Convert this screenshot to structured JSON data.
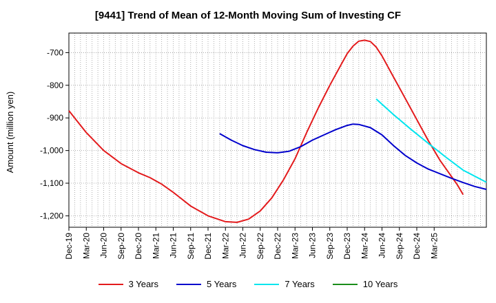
{
  "chart_data": {
    "type": "line",
    "title": "[9441]  Trend of Mean of 12-Month Moving Sum of Investing CF",
    "xlabel": "",
    "ylabel": "Amount (million yen)",
    "ylim": [
      -1235,
      -640
    ],
    "y_ticks": [
      -700,
      -800,
      -900,
      -1000,
      -1100,
      -1200
    ],
    "y_tick_labels": [
      "-700",
      "-800",
      "-900",
      "-1,000",
      "-1,100",
      "-1,200"
    ],
    "x_range_months": [
      0,
      72
    ],
    "x_ticks": [
      "Dec-19",
      "Mar-20",
      "Jun-20",
      "Sep-20",
      "Dec-20",
      "Mar-21",
      "Jun-21",
      "Sep-21",
      "Dec-21",
      "Mar-22",
      "Jun-22",
      "Sep-22",
      "Dec-22",
      "Mar-23",
      "Jun-23",
      "Sep-23",
      "Dec-23",
      "Mar-24",
      "Jun-24",
      "Sep-24",
      "Dec-24",
      "Mar-25"
    ],
    "grid": true,
    "legend_position": "bottom",
    "series": [
      {
        "name": "3 Years",
        "color": "#e31a1c",
        "points": [
          [
            0,
            -878
          ],
          [
            3,
            -945
          ],
          [
            6,
            -1000
          ],
          [
            9,
            -1040
          ],
          [
            12,
            -1068
          ],
          [
            14,
            -1083
          ],
          [
            16,
            -1103
          ],
          [
            18,
            -1128
          ],
          [
            21,
            -1170
          ],
          [
            24,
            -1200
          ],
          [
            27,
            -1218
          ],
          [
            29,
            -1220
          ],
          [
            31,
            -1210
          ],
          [
            33,
            -1185
          ],
          [
            35,
            -1145
          ],
          [
            37,
            -1090
          ],
          [
            39,
            -1025
          ],
          [
            41,
            -945
          ],
          [
            43,
            -870
          ],
          [
            45,
            -800
          ],
          [
            47,
            -735
          ],
          [
            48,
            -703
          ],
          [
            49,
            -680
          ],
          [
            50,
            -665
          ],
          [
            51,
            -662
          ],
          [
            52,
            -666
          ],
          [
            53,
            -683
          ],
          [
            54,
            -710
          ],
          [
            56,
            -775
          ],
          [
            58,
            -840
          ],
          [
            60,
            -905
          ],
          [
            62,
            -970
          ],
          [
            64,
            -1030
          ],
          [
            66,
            -1080
          ],
          [
            67,
            -1105
          ],
          [
            68,
            -1135
          ]
        ]
      },
      {
        "name": "5 Years",
        "color": "#0000cc",
        "points": [
          [
            26,
            -948
          ],
          [
            28,
            -968
          ],
          [
            30,
            -985
          ],
          [
            32,
            -997
          ],
          [
            34,
            -1005
          ],
          [
            36,
            -1007
          ],
          [
            38,
            -1002
          ],
          [
            40,
            -988
          ],
          [
            42,
            -968
          ],
          [
            44,
            -952
          ],
          [
            46,
            -936
          ],
          [
            48,
            -923
          ],
          [
            49,
            -919
          ],
          [
            50,
            -920
          ],
          [
            52,
            -930
          ],
          [
            54,
            -952
          ],
          [
            56,
            -985
          ],
          [
            58,
            -1015
          ],
          [
            60,
            -1038
          ],
          [
            62,
            -1057
          ],
          [
            64,
            -1071
          ],
          [
            66,
            -1085
          ],
          [
            68,
            -1098
          ],
          [
            70,
            -1110
          ],
          [
            72,
            -1119
          ]
        ]
      },
      {
        "name": "7 Years",
        "color": "#00e5ee",
        "points": [
          [
            53,
            -842
          ],
          [
            56,
            -890
          ],
          [
            59,
            -935
          ],
          [
            62,
            -978
          ],
          [
            65,
            -1020
          ],
          [
            68,
            -1060
          ],
          [
            72,
            -1097
          ]
        ]
      },
      {
        "name": "10 Years",
        "color": "#1a8c1a",
        "points": []
      }
    ]
  }
}
